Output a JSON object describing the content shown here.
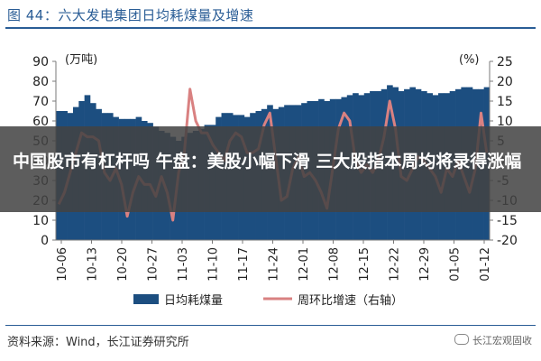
{
  "figure": {
    "title": "图 44：六大发电集团日均耗煤量及增速",
    "source": "资料来源：Wind，长江证券研究所",
    "watermark": "长江宏观固收"
  },
  "overlay": {
    "headline": "中国股市有杠杆吗 午盘：美股小幅下滑 三大股指本周均将录得涨幅"
  },
  "colors": {
    "bar": "#1c4e80",
    "line": "#d98181",
    "title": "#2a5d96",
    "axis": "#7a7a7a"
  },
  "chart_data": {
    "type": "bar+line",
    "left_axis": {
      "unit_label": "(万吨)",
      "ylim": [
        0,
        90
      ],
      "ticks": [
        0,
        10,
        20,
        30,
        40,
        50,
        60,
        70,
        80,
        90
      ]
    },
    "right_axis": {
      "unit_label": "(%)",
      "ylim": [
        -20,
        25
      ],
      "ticks": [
        -20,
        -15,
        -10,
        -5,
        0,
        5,
        10,
        15,
        20,
        25
      ]
    },
    "x_tick_labels": [
      "10-06",
      "10-13",
      "10-20",
      "10-27",
      "11-03",
      "11-10",
      "11-17",
      "11-24",
      "12-01",
      "12-08",
      "12-15",
      "12-22",
      "12-29",
      "01-05",
      "01-12"
    ],
    "legend": {
      "placement": "bottom",
      "entries": [
        "日均耗煤量",
        "周环比增速（右轴）"
      ]
    },
    "grid": false,
    "series": [
      {
        "name": "日均耗煤量",
        "type": "bar",
        "axis": "left",
        "values": [
          65,
          65,
          64,
          67,
          70,
          73,
          69,
          66,
          64,
          64,
          62,
          61,
          61,
          61,
          62,
          60,
          59,
          57,
          55,
          54,
          52,
          50,
          52,
          54,
          55,
          56,
          58,
          58,
          62,
          64,
          64,
          63,
          63,
          62,
          64,
          65,
          66,
          68,
          66,
          67,
          68,
          68,
          68,
          69,
          70,
          70,
          71,
          70,
          71,
          71,
          72,
          73,
          74,
          73,
          74,
          75,
          75,
          76,
          78,
          77,
          75,
          76,
          77,
          76,
          75,
          74,
          73,
          74,
          74,
          75,
          76,
          77,
          77,
          76,
          76,
          77
        ]
      },
      {
        "name": "周环比增速（右轴）",
        "type": "line",
        "axis": "right",
        "values": [
          -11,
          -8,
          -3,
          2,
          7,
          6,
          6,
          5,
          -3,
          -5,
          -2,
          -6,
          -14,
          -8,
          -4,
          -6,
          -6,
          -9,
          -4,
          -8,
          -15,
          -3,
          2,
          18,
          10,
          7,
          7,
          4,
          2,
          0,
          5,
          7,
          6,
          2,
          2,
          3,
          9,
          12,
          1,
          -10,
          -9,
          -2,
          1,
          -4,
          -3,
          -5,
          -8,
          -12,
          -2,
          8,
          12,
          10,
          0,
          -3,
          -1,
          -3,
          0,
          6,
          15,
          8,
          -4,
          -5,
          -2,
          1,
          0,
          -2,
          -4,
          -8,
          -2,
          -4,
          0,
          -4,
          -8,
          -2,
          12,
          2
        ]
      }
    ]
  }
}
